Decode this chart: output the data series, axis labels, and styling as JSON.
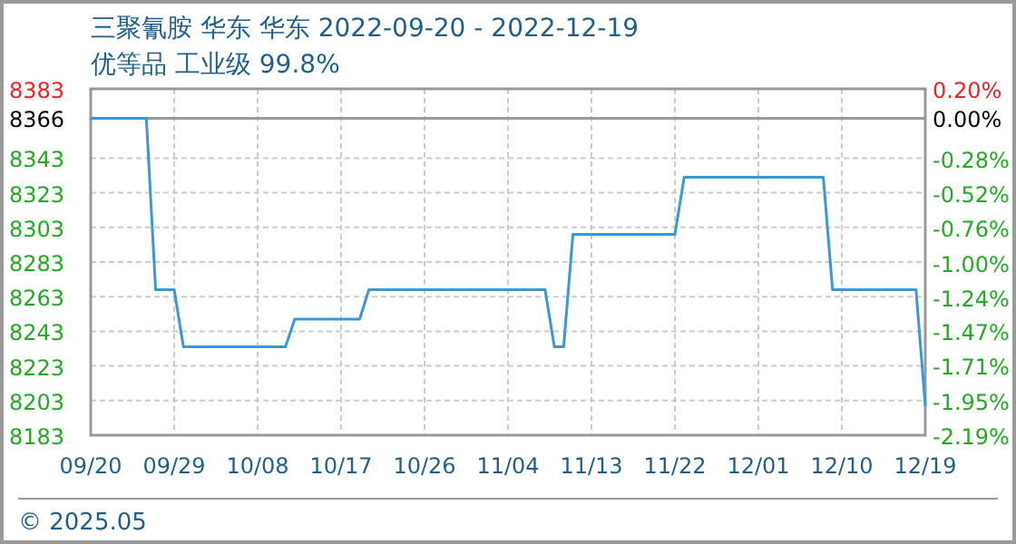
{
  "chart_data": {
    "type": "line",
    "title": "三聚氰胺 华东 华东 2022-09-20 - 2022-12-19",
    "subtitle": "优等品 工业级 99.8%",
    "annotations": [
      "© 2025.05"
    ],
    "x": [
      "2022-09-20",
      "2022-09-26",
      "2022-09-27",
      "2022-09-29",
      "2022-09-30",
      "2022-10-11",
      "2022-10-12",
      "2022-10-19",
      "2022-10-20",
      "2022-11-08",
      "2022-11-09",
      "2022-11-10",
      "2022-11-11",
      "2022-11-22",
      "2022-11-23",
      "2022-12-08",
      "2022-12-09",
      "2022-12-18",
      "2022-12-19"
    ],
    "series": [
      {
        "color": "#3a98d8",
        "values": [
          8366,
          8366,
          8267,
          8267,
          8234,
          8234,
          8250,
          8250,
          8267,
          8267,
          8234,
          8234,
          8299,
          8299,
          8332,
          8332,
          8267,
          8267,
          8200
        ]
      }
    ],
    "xlim": [
      "2022-09-20",
      "2022-12-19"
    ],
    "xticks": [
      {
        "value": "2022-09-20",
        "label": "09/20"
      },
      {
        "value": "2022-09-29",
        "label": "09/29"
      },
      {
        "value": "2022-10-08",
        "label": "10/08"
      },
      {
        "value": "2022-10-17",
        "label": "10/17"
      },
      {
        "value": "2022-10-26",
        "label": "10/26"
      },
      {
        "value": "2022-11-04",
        "label": "11/04"
      },
      {
        "value": "2022-11-13",
        "label": "11/13"
      },
      {
        "value": "2022-11-22",
        "label": "11/22"
      },
      {
        "value": "2022-12-01",
        "label": "12/01"
      },
      {
        "value": "2022-12-10",
        "label": "12/10"
      },
      {
        "value": "2022-12-19",
        "label": "12/19"
      }
    ],
    "ylim": [
      8183,
      8383
    ],
    "yticks": [
      8183,
      8203,
      8223,
      8243,
      8263,
      8283,
      8303,
      8323,
      8343,
      8366,
      8383
    ],
    "y2lim": [
      -2.19,
      0.2
    ],
    "y2ticks": [
      {
        "value": -2.19,
        "label": "-2.19%"
      },
      {
        "value": -1.95,
        "label": "-1.95%"
      },
      {
        "value": -1.71,
        "label": "-1.71%"
      },
      {
        "value": -1.47,
        "label": "-1.47%"
      },
      {
        "value": -1.24,
        "label": "-1.24%"
      },
      {
        "value": -1.0,
        "label": "-1.00%"
      },
      {
        "value": -0.76,
        "label": "-0.76%"
      },
      {
        "value": -0.52,
        "label": "-0.52%"
      },
      {
        "value": -0.28,
        "label": "-0.28%"
      },
      {
        "value": 0,
        "label": "0.00%"
      },
      {
        "value": 0.2,
        "label": "0.20%"
      }
    ],
    "ref_lines": [
      {
        "axis": "y",
        "value": 8366,
        "color": "#999999"
      }
    ],
    "grid": true,
    "marker": "none",
    "line_style": "solid"
  }
}
